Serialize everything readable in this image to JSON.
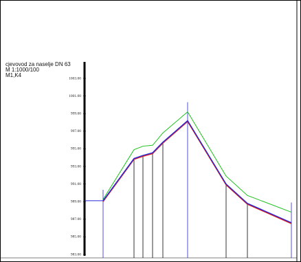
{
  "chart_data": {
    "type": "line",
    "title": "cjevovod za naselje DN 63",
    "subtitle": "M 1:1000/100",
    "annotation": "M1,K4",
    "categories": [
      null,
      null,
      null,
      null,
      null,
      null,
      null,
      null,
      null
    ],
    "series": [
      {
        "color": "#19c219",
        "values": [
          989.25,
          994.9,
          995.3,
          995.4,
          996.8,
          999.2,
          991.9,
          989.7,
          987.8
        ]
      },
      {
        "color": "#e02020",
        "values": [
          989.0,
          993.8,
          994.15,
          994.45,
          995.65,
          998.1,
          990.9,
          988.7,
          986.5
        ]
      },
      {
        "color": "#2424d8",
        "values": [
          989.1,
          993.9,
          994.25,
          994.55,
          995.75,
          998.2,
          991.0,
          988.8,
          986.6
        ]
      }
    ],
    "ylim": [
      983,
      1003
    ],
    "yticks": [
      {
        "value": 1003,
        "label": "1003.00"
      },
      {
        "value": 1001,
        "label": "1001.00"
      },
      {
        "value": 999,
        "label": "999.00"
      },
      {
        "value": 997,
        "label": "997.00"
      },
      {
        "value": 995,
        "label": "995.00"
      },
      {
        "value": 993,
        "label": "993.00"
      },
      {
        "value": 991,
        "label": "991.00"
      },
      {
        "value": 989,
        "label": "989.00"
      },
      {
        "value": 987,
        "label": "987.00"
      },
      {
        "value": 985,
        "label": "985.00"
      },
      {
        "value": 983,
        "label": "983.00"
      }
    ]
  }
}
